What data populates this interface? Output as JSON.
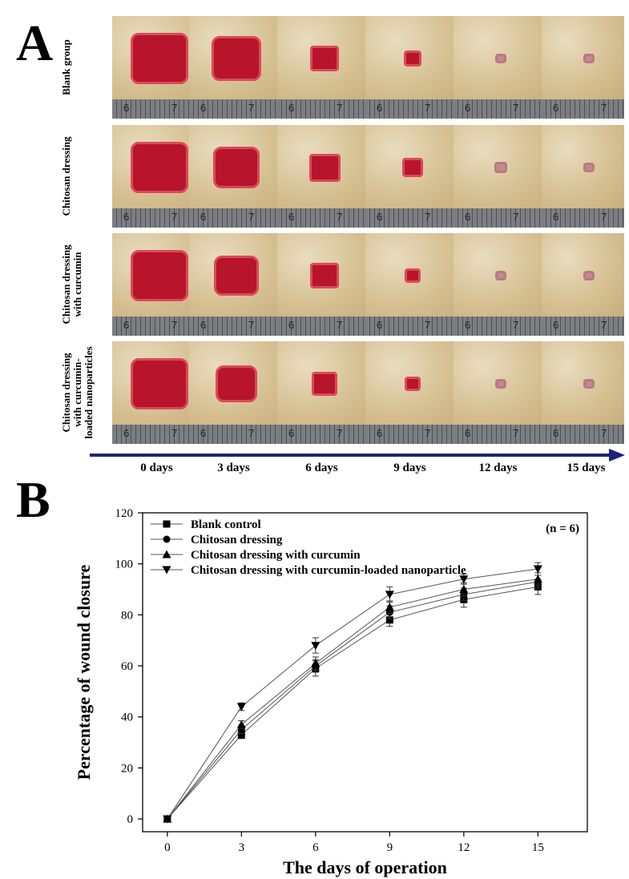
{
  "panel_a": {
    "letter": "A",
    "rows": [
      {
        "label": "Blank group"
      },
      {
        "label": "Chitosan dressing"
      },
      {
        "label": "Chitosan dressing with curcumin"
      },
      {
        "label": "Chitosan dressing with curcumin-loaded nanoparticles"
      }
    ],
    "days": [
      "0 days",
      "3 days",
      "6 days",
      "9 days",
      "12 days",
      "15 days"
    ],
    "ruler_ticks": [
      "6",
      "7"
    ]
  },
  "chart_data": {
    "panel_letter": "B",
    "type": "line",
    "xlabel": "The days of operation",
    "ylabel": "Percentage of wound closure",
    "annotation": "(n = 6)",
    "x": [
      0,
      3,
      6,
      9,
      12,
      15
    ],
    "xticks": [
      0,
      3,
      6,
      9,
      12,
      15
    ],
    "yticks": [
      0,
      20,
      40,
      60,
      80,
      100,
      120
    ],
    "xlim": [
      -1,
      17
    ],
    "ylim": [
      -5,
      120
    ],
    "legend_position": "top-left",
    "series": [
      {
        "name": "Blank control",
        "marker": "square",
        "values": [
          0,
          33,
          59,
          78,
          86,
          91
        ],
        "errors": [
          0,
          1.5,
          3,
          2.5,
          3,
          3
        ]
      },
      {
        "name": "Chitosan dressing",
        "marker": "circle",
        "values": [
          0,
          35,
          60,
          81,
          88,
          93
        ],
        "errors": [
          0,
          1.5,
          2.5,
          2.5,
          2.5,
          2.5
        ]
      },
      {
        "name": "Chitosan dressing with curcumin",
        "marker": "triangle-up",
        "values": [
          0,
          37,
          61,
          83,
          90,
          94
        ],
        "errors": [
          0,
          1.5,
          2.5,
          2.5,
          2.5,
          2.5
        ]
      },
      {
        "name": "Chitosan dressing with curcumin-loaded nanoparticle",
        "marker": "triangle-down",
        "values": [
          0,
          44,
          68,
          88,
          94,
          98
        ],
        "errors": [
          0,
          1.5,
          3,
          3,
          2,
          2.5
        ]
      }
    ]
  }
}
